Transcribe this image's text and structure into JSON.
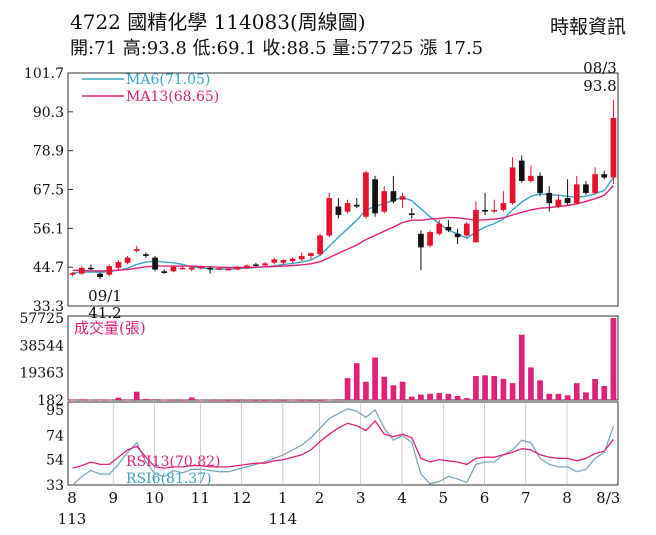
{
  "header": {
    "title": "4722 國精化學 114083(周線圖)",
    "source": "時報資訊",
    "stats": "開:71 高:93.8 低:69.1 收:88.5 量:57725 漲 17.5"
  },
  "colors": {
    "up": "#e8112d",
    "down": "#111111",
    "ma6": "#37a6c8",
    "ma13": "#e0217a",
    "volume": "#e0217a",
    "rsi13": "#e0217a",
    "rsi6": "#7fa6c0",
    "frame": "#333333"
  },
  "chart_data": [
    {
      "type": "candlestick",
      "x_labels": [
        "8",
        "9",
        "10",
        "11",
        "12",
        "1",
        "2",
        "3",
        "4",
        "5",
        "6",
        "7",
        "8",
        "8/3"
      ],
      "x_sublabels": [
        "113",
        "",
        "",
        "",
        "",
        "114",
        "",
        "",
        "",
        "",
        "",
        "",
        "",
        ""
      ],
      "y_ticks": [
        101.7,
        90.3,
        78.9,
        67.5,
        56.1,
        44.7,
        33.3
      ],
      "ylim": [
        33.3,
        101.7
      ],
      "legend": [
        "MA6(71.05)",
        "MA13(68.65)"
      ],
      "annotations": [
        {
          "text_date": "08/3",
          "text_value": "93.8"
        },
        {
          "text_date": "09/1",
          "text_value": "41.2"
        }
      ],
      "candles": [
        [
          42.5,
          43.2,
          42.0,
          43.0
        ],
        [
          42.8,
          45.0,
          42.5,
          44.5
        ],
        [
          44.5,
          45.5,
          43.8,
          44.2
        ],
        [
          42.8,
          43.0,
          41.2,
          41.8
        ],
        [
          42.5,
          45.5,
          42.0,
          45.0
        ],
        [
          44.5,
          46.8,
          43.8,
          46.2
        ],
        [
          46.0,
          48.0,
          45.5,
          47.5
        ],
        [
          49.5,
          51.0,
          49.0,
          50.0
        ],
        [
          48.5,
          49.0,
          47.5,
          48.0
        ],
        [
          47.5,
          48.0,
          43.5,
          44.0
        ],
        [
          43.5,
          44.0,
          42.8,
          43.0
        ],
        [
          43.5,
          45.2,
          43.2,
          44.8
        ],
        [
          44.5,
          45.0,
          44.0,
          44.5
        ],
        [
          44.0,
          44.8,
          43.5,
          44.6
        ],
        [
          44.5,
          45.0,
          44.0,
          44.8
        ],
        [
          44.5,
          44.8,
          42.8,
          44.0
        ],
        [
          44.2,
          44.6,
          43.8,
          44.4
        ],
        [
          44.0,
          44.6,
          43.8,
          44.2
        ],
        [
          44.0,
          45.0,
          43.8,
          44.8
        ],
        [
          44.5,
          45.5,
          44.2,
          45.2
        ],
        [
          45.5,
          46.0,
          44.8,
          45.2
        ],
        [
          45.2,
          46.2,
          44.8,
          45.8
        ],
        [
          46.0,
          47.5,
          45.5,
          47.0
        ],
        [
          46.0,
          47.0,
          45.5,
          46.8
        ],
        [
          46.5,
          47.5,
          46.0,
          47.2
        ],
        [
          47.0,
          49.0,
          46.5,
          48.0
        ],
        [
          48.0,
          49.0,
          47.0,
          48.8
        ],
        [
          48.5,
          54.5,
          48.0,
          54.0
        ],
        [
          54.0,
          66.5,
          53.5,
          65.0
        ],
        [
          62.5,
          65.0,
          59.0,
          60.0
        ],
        [
          61.0,
          64.5,
          60.5,
          63.5
        ],
        [
          63.0,
          65.0,
          62.0,
          62.5
        ],
        [
          59.5,
          73.0,
          59.0,
          72.5
        ],
        [
          70.5,
          71.5,
          59.5,
          60.5
        ],
        [
          61.0,
          68.5,
          60.5,
          67.0
        ],
        [
          67.0,
          71.5,
          63.5,
          64.0
        ],
        [
          64.5,
          66.5,
          62.0,
          65.5
        ],
        [
          60.5,
          62.0,
          59.0,
          60.0
        ],
        [
          54.5,
          55.5,
          43.8,
          50.5
        ],
        [
          51.0,
          55.5,
          50.5,
          55.0
        ],
        [
          54.5,
          58.5,
          54.0,
          57.5
        ],
        [
          56.5,
          58.5,
          55.0,
          55.5
        ],
        [
          54.5,
          56.0,
          51.5,
          53.5
        ],
        [
          54.0,
          58.0,
          53.5,
          57.5
        ],
        [
          52.0,
          64.0,
          52.0,
          61.5
        ],
        [
          61.5,
          66.5,
          60.0,
          61.0
        ],
        [
          61.0,
          64.5,
          60.5,
          61.5
        ],
        [
          61.5,
          67.0,
          61.0,
          63.5
        ],
        [
          63.5,
          77.0,
          63.0,
          74.0
        ],
        [
          76.0,
          77.5,
          69.5,
          70.0
        ],
        [
          70.0,
          74.5,
          69.5,
          71.5
        ],
        [
          71.5,
          72.5,
          65.5,
          66.5
        ],
        [
          66.5,
          68.5,
          61.0,
          63.5
        ],
        [
          62.5,
          66.0,
          62.0,
          64.5
        ],
        [
          65.0,
          70.5,
          63.0,
          63.5
        ],
        [
          63.5,
          71.5,
          63.0,
          69.0
        ],
        [
          69.0,
          70.0,
          66.0,
          66.5
        ],
        [
          66.5,
          74.0,
          66.0,
          72.0
        ],
        [
          72.0,
          73.0,
          70.5,
          71.0
        ],
        [
          71.0,
          93.8,
          69.1,
          88.5
        ]
      ],
      "ma6": [
        43.0,
        43.2,
        43.3,
        43.2,
        43.4,
        43.8,
        44.4,
        45.5,
        46.2,
        46.5,
        46.2,
        46.0,
        45.5,
        44.8,
        44.5,
        44.2,
        44.1,
        44.2,
        44.3,
        44.4,
        44.6,
        44.8,
        45.1,
        45.5,
        45.8,
        46.2,
        46.8,
        48.2,
        50.8,
        53.5,
        56.0,
        58.5,
        61.5,
        62.5,
        63.4,
        64.3,
        65.2,
        64.2,
        61.8,
        59.5,
        57.5,
        55.5,
        54.5,
        53.2,
        55.0,
        56.5,
        57.5,
        58.8,
        61.5,
        63.8,
        65.5,
        66.2,
        66.0,
        65.8,
        65.5,
        65.2,
        65.5,
        66.3,
        67.2,
        71.05
      ],
      "ma13": [
        43.8,
        43.7,
        43.6,
        43.6,
        43.7,
        43.8,
        44.0,
        44.4,
        44.8,
        45.0,
        45.0,
        45.0,
        45.0,
        45.0,
        44.9,
        44.8,
        44.7,
        44.6,
        44.6,
        44.6,
        44.7,
        44.8,
        44.9,
        45.0,
        45.2,
        45.4,
        45.7,
        46.3,
        47.5,
        48.8,
        50.0,
        51.2,
        52.8,
        54.0,
        55.3,
        56.5,
        57.8,
        58.5,
        58.5,
        58.8,
        59.0,
        59.3,
        59.2,
        58.8,
        58.5,
        58.6,
        58.8,
        59.2,
        60.0,
        60.8,
        61.5,
        62.0,
        62.2,
        62.5,
        62.8,
        63.3,
        64.0,
        64.8,
        65.8,
        68.65
      ]
    },
    {
      "type": "bar",
      "title": "成交量(張)",
      "y_ticks": [
        57725,
        38544,
        19363,
        182
      ],
      "ylim": [
        182,
        57725
      ],
      "values": [
        600,
        700,
        500,
        600,
        500,
        1800,
        600,
        6000,
        900,
        700,
        500,
        400,
        400,
        2000,
        500,
        400,
        400,
        300,
        300,
        400,
        300,
        300,
        400,
        300,
        500,
        300,
        300,
        300,
        500,
        700,
        15500,
        26000,
        13000,
        30000,
        16500,
        10500,
        13000,
        2500,
        4000,
        4500,
        5000,
        4500,
        3000,
        1500,
        17000,
        17500,
        17000,
        15000,
        12000,
        46000,
        23000,
        14000,
        4500,
        4500,
        3500,
        12000,
        5500,
        15000,
        10000,
        57725
      ]
    },
    {
      "type": "line",
      "y_ticks": [
        95,
        74,
        54,
        33
      ],
      "ylim": [
        33,
        95
      ],
      "legend": [
        "RSI13(70.82)",
        "RSI6(81.37)"
      ],
      "series": [
        {
          "name": "RSI13(70.82)",
          "values": [
            47,
            49,
            52,
            50,
            50,
            56,
            62,
            65,
            56,
            48,
            47,
            48,
            48,
            49,
            49,
            48,
            48,
            48,
            49,
            50,
            51,
            51,
            53,
            54,
            56,
            58,
            62,
            69,
            75,
            80,
            84,
            82,
            78,
            86,
            75,
            73,
            75,
            72,
            55,
            52,
            54,
            53,
            52,
            50,
            55,
            56,
            56,
            58,
            60,
            63,
            62,
            58,
            56,
            55,
            55,
            53,
            55,
            59,
            61,
            70.82
          ]
        },
        {
          "name": "RSI6(81.37)",
          "values": [
            33,
            40,
            45,
            42,
            42,
            50,
            60,
            68,
            52,
            42,
            40,
            45,
            43,
            46,
            46,
            45,
            44,
            44,
            46,
            48,
            50,
            52,
            55,
            58,
            62,
            66,
            72,
            80,
            88,
            92,
            96,
            94,
            89,
            95,
            80,
            70,
            74,
            68,
            42,
            34,
            36,
            40,
            38,
            35,
            50,
            52,
            52,
            58,
            62,
            70,
            68,
            55,
            50,
            48,
            48,
            44,
            46,
            55,
            60,
            81.37
          ]
        }
      ]
    }
  ]
}
